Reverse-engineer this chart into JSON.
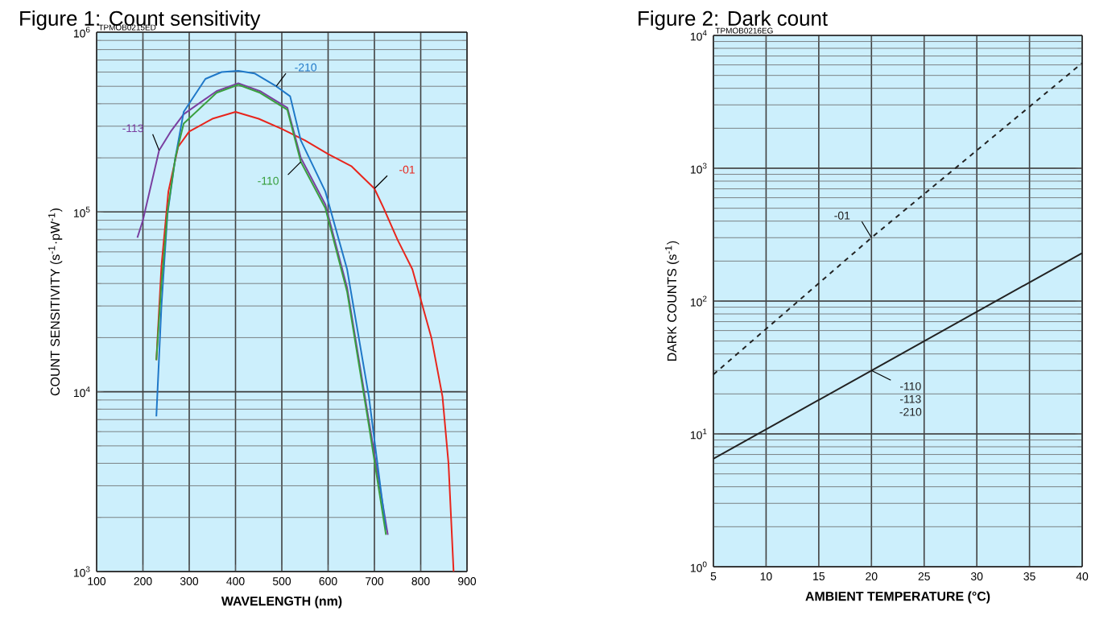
{
  "chart_data": [
    {
      "type": "line",
      "title": "Figure 1: Count sensitivity",
      "xlabel": "WAVELENGTH (nm)",
      "ylabel": "COUNT SENSITIVITY (s$^{-1}$·pW$^{-1}$)",
      "annotations": [
        "TPMOB0215ED"
      ],
      "log": "y",
      "grid": true,
      "xlim": [
        100,
        900
      ],
      "xticks": [
        100,
        200,
        300,
        400,
        500,
        600,
        700,
        800,
        900
      ],
      "ylim": [
        1000,
        1000000
      ],
      "yticks": [
        {
          "value": 1000,
          "label": "10$^{3}$"
        },
        {
          "value": 10000,
          "label": "10$^{4}$"
        },
        {
          "value": 100000,
          "label": "10$^{5}$"
        },
        {
          "value": 1000000,
          "label": "10$^{6}$"
        }
      ],
      "series": [
        {
          "name": "-01",
          "color": "#e8251c",
          "x": [
            229,
            240,
            255,
            276,
            300,
            350,
            400,
            450,
            500,
            550,
            600,
            650,
            700,
            720,
            750,
            782,
            823,
            847,
            860,
            871
          ],
          "values": [
            15000,
            50000,
            130000,
            230000,
            280000,
            330000,
            360000,
            330000,
            290000,
            250000,
            210000,
            180000,
            135000,
            105000,
            70000,
            48000,
            20000,
            9400,
            4000,
            1000
          ]
        },
        {
          "name": "-110",
          "color": "#3aa040",
          "x": [
            229,
            240,
            253,
            270,
            288,
            359,
            406,
            453,
            512,
            541,
            594,
            641,
            688,
            725
          ],
          "values": [
            15000,
            40000,
            100000,
            200000,
            310000,
            460000,
            510000,
            460000,
            370000,
            190000,
            105000,
            36000,
            6500,
            1600
          ]
        },
        {
          "name": "-113",
          "color": "#7a3fa0",
          "x": [
            188,
            200,
            235,
            260,
            288,
            359,
            406,
            453,
            512,
            541,
            594,
            641,
            688,
            729
          ],
          "values": [
            72000,
            90000,
            220000,
            280000,
            350000,
            470000,
            520000,
            470000,
            380000,
            200000,
            110000,
            38000,
            6900,
            1600
          ]
        },
        {
          "name": "-210",
          "color": "#1f78c8",
          "x": [
            229,
            240,
            253,
            270,
            288,
            335,
            370,
            406,
            441,
            488,
            518,
            541,
            594,
            641,
            688,
            725
          ],
          "values": [
            7300,
            30000,
            97000,
            200000,
            360000,
            550000,
            600000,
            610000,
            590000,
            500000,
            440000,
            250000,
            130000,
            48000,
            9400,
            1700
          ]
        }
      ]
    },
    {
      "type": "line",
      "title": "Figure 2: Dark count",
      "xlabel": "AMBIENT TEMPERATURE (°C)",
      "ylabel": "DARK COUNTS (s$^{-1}$)",
      "annotations": [
        "TPMOB0216EG"
      ],
      "log": "y",
      "grid": true,
      "xlim": [
        5,
        40
      ],
      "xticks": [
        5,
        10,
        15,
        20,
        25,
        30,
        35,
        40
      ],
      "ylim": [
        1,
        10000
      ],
      "yticks": [
        {
          "value": 1,
          "label": "10$^{0}$"
        },
        {
          "value": 10,
          "label": "10$^{1}$"
        },
        {
          "value": 100,
          "label": "10$^{2}$"
        },
        {
          "value": 1000,
          "label": "10$^{3}$"
        },
        {
          "value": 10000,
          "label": "10$^{4}$"
        }
      ],
      "series": [
        {
          "name": "-01",
          "color": "#222222",
          "line_style": "dashed",
          "x": [
            5,
            20,
            40
          ],
          "values": [
            28,
            300,
            6200
          ]
        },
        {
          "name": "-110 -113 -210",
          "color": "#222222",
          "line_style": "solid",
          "x": [
            5,
            20,
            40
          ],
          "values": [
            6.5,
            30,
            230
          ]
        }
      ]
    }
  ]
}
